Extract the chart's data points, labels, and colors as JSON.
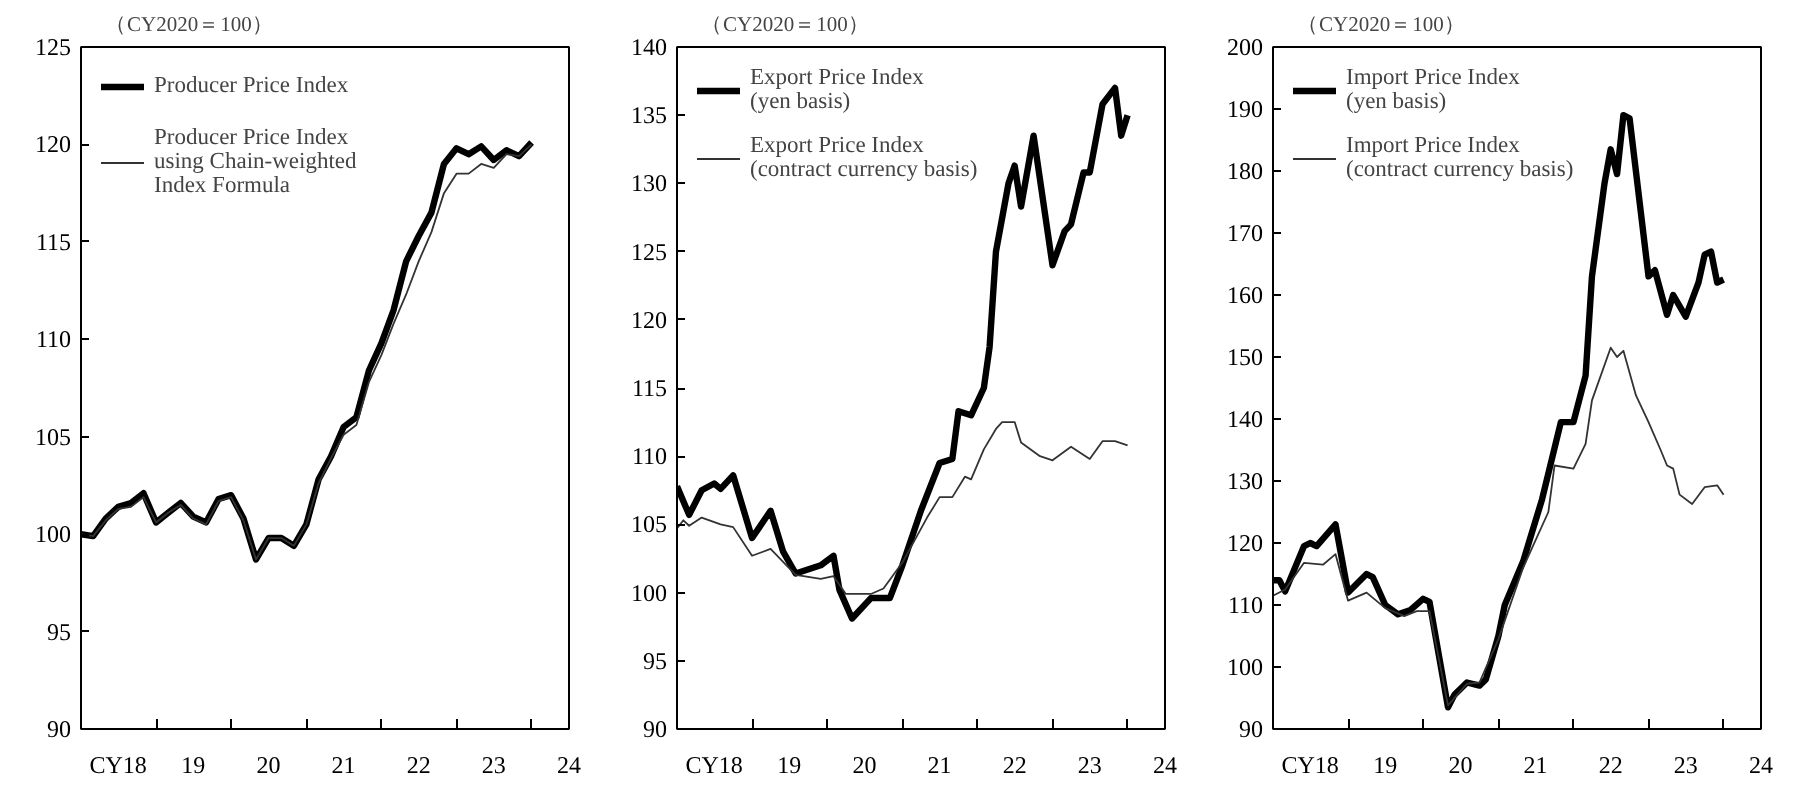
{
  "chart_data": [
    {
      "type": "line",
      "ylabel": "（CY2020＝100）",
      "xlim": [
        "2018-01",
        "2024-07"
      ],
      "ylim": [
        90,
        125
      ],
      "yticks": [
        90,
        95,
        100,
        105,
        110,
        115,
        120,
        125
      ],
      "xticks": [
        {
          "value": "2018-07",
          "label": "CY18"
        },
        {
          "value": "2019-07",
          "label": "19"
        },
        {
          "value": "2020-07",
          "label": "20"
        },
        {
          "value": "2021-07",
          "label": "21"
        },
        {
          "value": "2022-07",
          "label": "22"
        },
        {
          "value": "2023-07",
          "label": "23"
        },
        {
          "value": "2024-07",
          "label": "24"
        },
        {
          "value": "2019-01",
          "label": null
        },
        {
          "value": "2020-01",
          "label": null
        },
        {
          "value": "2021-01",
          "label": null
        },
        {
          "value": "2022-01",
          "label": null
        },
        {
          "value": "2023-01",
          "label": null
        },
        {
          "value": "2024-01",
          "label": null
        }
      ],
      "grid": false,
      "legend": "top left",
      "marker": "none",
      "line_style": "solid",
      "x": [
        "2018-01",
        "2018-03",
        "2018-05",
        "2018-07",
        "2018-09",
        "2018-11",
        "2019-01",
        "2019-03",
        "2019-05",
        "2019-07",
        "2019-09",
        "2019-11",
        "2020-01",
        "2020-03",
        "2020-05",
        "2020-07",
        "2020-09",
        "2020-11",
        "2021-01",
        "2021-03",
        "2021-05",
        "2021-07",
        "2021-09",
        "2021-11",
        "2022-01",
        "2022-03",
        "2022-05",
        "2022-07",
        "2022-09",
        "2022-11",
        "2023-01",
        "2023-03",
        "2023-05",
        "2023-07",
        "2023-09",
        "2023-11",
        "2024-01"
      ],
      "series": [
        {
          "name": "Producer Price Index",
          "color": "#000000",
          "values": [
            100.0,
            99.9,
            100.8,
            101.4,
            101.6,
            102.1,
            100.6,
            101.1,
            101.6,
            100.9,
            100.6,
            101.8,
            102.0,
            100.8,
            98.7,
            99.8,
            99.8,
            99.4,
            100.5,
            102.8,
            104.0,
            105.5,
            106.0,
            108.4,
            109.8,
            111.5,
            114.0,
            115.3,
            116.5,
            119.0,
            119.8,
            119.5,
            119.9,
            119.2,
            119.7,
            119.4,
            120.1
          ]
        },
        {
          "name": "Producer Price Index\nusing Chain-weighted\nIndex Formula",
          "color": "#333333",
          "values": [
            100.0,
            99.9,
            100.7,
            101.3,
            101.4,
            101.9,
            100.6,
            101.1,
            101.5,
            100.8,
            100.5,
            101.7,
            101.9,
            100.7,
            98.7,
            99.8,
            99.8,
            99.4,
            100.5,
            102.6,
            103.9,
            105.1,
            105.6,
            107.8,
            109.2,
            110.8,
            112.3,
            114.0,
            115.5,
            117.5,
            118.5,
            118.5,
            119.0,
            118.8,
            119.5,
            119.4,
            120.0
          ]
        }
      ]
    },
    {
      "type": "line",
      "ylabel": "（CY2020＝100）",
      "xlim": [
        "2018-01",
        "2024-07"
      ],
      "ylim": [
        90,
        140
      ],
      "yticks": [
        90,
        95,
        100,
        105,
        110,
        115,
        120,
        125,
        130,
        135,
        140
      ],
      "xticks": [
        {
          "value": "2018-07",
          "label": "CY18"
        },
        {
          "value": "2019-07",
          "label": "19"
        },
        {
          "value": "2020-07",
          "label": "20"
        },
        {
          "value": "2021-07",
          "label": "21"
        },
        {
          "value": "2022-07",
          "label": "22"
        },
        {
          "value": "2023-07",
          "label": "23"
        },
        {
          "value": "2024-07",
          "label": "24"
        },
        {
          "value": "2019-01",
          "label": null
        },
        {
          "value": "2020-01",
          "label": null
        },
        {
          "value": "2021-01",
          "label": null
        },
        {
          "value": "2022-01",
          "label": null
        },
        {
          "value": "2023-01",
          "label": null
        },
        {
          "value": "2024-01",
          "label": null
        }
      ],
      "grid": false,
      "legend": "top left",
      "marker": "none",
      "line_style": "solid",
      "series": [
        {
          "name": "Export Price Index\n(yen basis)",
          "color": "#000000",
          "x": [
            "2018-01",
            "2018-03",
            "2018-05",
            "2018-07",
            "2018-08",
            "2018-10",
            "2019-01",
            "2019-04",
            "2019-06",
            "2019-08",
            "2019-12",
            "2020-02",
            "2020-03",
            "2020-05",
            "2020-08",
            "2020-11",
            "2021-01",
            "2021-04",
            "2021-07",
            "2021-09",
            "2021-10",
            "2021-12",
            "2022-02",
            "2022-03",
            "2022-04",
            "2022-06",
            "2022-07",
            "2022-08",
            "2022-10",
            "2023-01",
            "2023-03",
            "2023-04",
            "2023-06",
            "2023-07",
            "2023-09",
            "2023-11",
            "2023-12",
            "2024-01"
          ],
          "values": [
            107.8,
            105.7,
            107.5,
            108.0,
            107.6,
            108.6,
            104.0,
            106.0,
            103.0,
            101.4,
            102.0,
            102.7,
            100.2,
            98.1,
            99.6,
            99.6,
            102.0,
            106.0,
            109.5,
            109.8,
            113.3,
            113.0,
            115.0,
            118.0,
            125.0,
            130.0,
            131.3,
            128.3,
            133.5,
            124.0,
            126.5,
            127.0,
            130.8,
            130.8,
            135.8,
            137.0,
            133.5,
            135.0
          ]
        },
        {
          "name": "Export Price Index\n(contract currency basis)",
          "color": "#333333",
          "x": [
            "2018-01",
            "2018-02",
            "2018-03",
            "2018-05",
            "2018-08",
            "2018-10",
            "2019-01",
            "2019-04",
            "2019-08",
            "2019-12",
            "2020-02",
            "2020-04",
            "2020-08",
            "2020-10",
            "2021-01",
            "2021-05",
            "2021-07",
            "2021-09",
            "2021-11",
            "2021-12",
            "2022-02",
            "2022-04",
            "2022-05",
            "2022-07",
            "2022-08",
            "2022-11",
            "2023-01",
            "2023-04",
            "2023-07",
            "2023-09",
            "2023-11",
            "2024-01"
          ],
          "values": [
            104.7,
            105.3,
            104.9,
            105.5,
            105.0,
            104.8,
            102.7,
            103.2,
            101.3,
            101.0,
            101.2,
            99.9,
            99.9,
            100.3,
            102.2,
            105.5,
            107.0,
            107.0,
            108.5,
            108.3,
            110.5,
            112.0,
            112.5,
            112.5,
            111.0,
            110.0,
            109.7,
            110.7,
            109.8,
            111.1,
            111.1,
            110.8
          ]
        }
      ]
    },
    {
      "type": "line",
      "ylabel": "（CY2020＝100）",
      "xlim": [
        "2018-01",
        "2024-07"
      ],
      "ylim": [
        90,
        200
      ],
      "yticks": [
        90,
        100,
        110,
        120,
        130,
        140,
        150,
        160,
        170,
        180,
        190,
        200
      ],
      "xticks": [
        {
          "value": "2018-07",
          "label": "CY18"
        },
        {
          "value": "2019-07",
          "label": "19"
        },
        {
          "value": "2020-07",
          "label": "20"
        },
        {
          "value": "2021-07",
          "label": "21"
        },
        {
          "value": "2022-07",
          "label": "22"
        },
        {
          "value": "2023-07",
          "label": "23"
        },
        {
          "value": "2024-07",
          "label": "24"
        },
        {
          "value": "2019-01",
          "label": null
        },
        {
          "value": "2020-01",
          "label": null
        },
        {
          "value": "2021-01",
          "label": null
        },
        {
          "value": "2022-01",
          "label": null
        },
        {
          "value": "2023-01",
          "label": null
        },
        {
          "value": "2024-01",
          "label": null
        }
      ],
      "grid": false,
      "legend": "top left",
      "marker": "none",
      "line_style": "solid",
      "series": [
        {
          "name": "Import Price Index\n(yen basis)",
          "color": "#000000",
          "x": [
            "2018-01",
            "2018-02",
            "2018-03",
            "2018-06",
            "2018-07",
            "2018-08",
            "2018-11",
            "2019-01",
            "2019-04",
            "2019-05",
            "2019-07",
            "2019-09",
            "2019-11",
            "2020-01",
            "2020-02",
            "2020-05",
            "2020-06",
            "2020-08",
            "2020-10",
            "2020-11",
            "2021-01",
            "2021-02",
            "2021-05",
            "2021-08",
            "2021-11",
            "2022-01",
            "2022-03",
            "2022-04",
            "2022-06",
            "2022-07",
            "2022-08",
            "2022-09",
            "2022-10",
            "2023-01",
            "2023-02",
            "2023-04",
            "2023-05",
            "2023-07",
            "2023-09",
            "2023-10",
            "2023-11",
            "2023-12",
            "2024-01"
          ],
          "values": [
            114.0,
            114.0,
            112.2,
            119.5,
            120.0,
            119.5,
            123.0,
            112.0,
            115.0,
            114.5,
            110.0,
            108.5,
            109.2,
            111.0,
            110.5,
            93.5,
            95.5,
            97.5,
            97.0,
            98.0,
            105.0,
            110.0,
            117.0,
            127.0,
            139.5,
            139.5,
            147.0,
            163.0,
            178.0,
            183.5,
            179.5,
            189.0,
            188.5,
            163.0,
            164.0,
            156.8,
            160.0,
            156.5,
            162.0,
            166.5,
            167.0,
            162.0,
            162.5
          ]
        },
        {
          "name": "Import Price Index\n(contract currency basis)",
          "color": "#333333",
          "x": [
            "2018-01",
            "2018-03",
            "2018-06",
            "2018-09",
            "2018-11",
            "2019-01",
            "2019-04",
            "2019-07",
            "2019-10",
            "2019-12",
            "2020-02",
            "2020-05",
            "2020-08",
            "2020-10",
            "2021-01",
            "2021-05",
            "2021-09",
            "2021-10",
            "2022-01",
            "2022-03",
            "2022-04",
            "2022-07",
            "2022-08",
            "2022-09",
            "2022-11",
            "2023-01",
            "2023-03",
            "2023-04",
            "2023-05",
            "2023-06",
            "2023-08",
            "2023-10",
            "2023-12",
            "2024-01"
          ],
          "values": [
            111.5,
            112.5,
            116.8,
            116.5,
            118.2,
            110.7,
            112.0,
            109.5,
            108.2,
            109.0,
            109.0,
            93.8,
            97.3,
            97.5,
            104.5,
            116.0,
            125.0,
            132.5,
            132.0,
            136.0,
            143.0,
            151.5,
            150.0,
            151.0,
            143.8,
            139.5,
            135.0,
            132.5,
            132.0,
            127.8,
            126.3,
            129.0,
            129.3,
            127.8
          ]
        }
      ]
    }
  ]
}
